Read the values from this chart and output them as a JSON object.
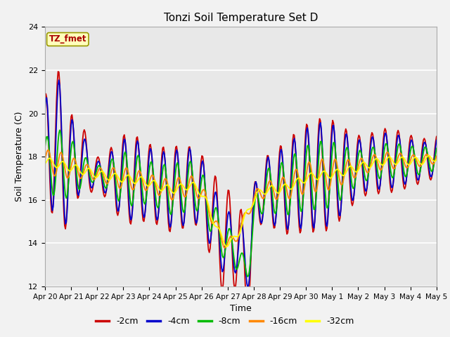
{
  "title": "Tonzi Soil Temperature Set D",
  "xlabel": "Time",
  "ylabel": "Soil Temperature (C)",
  "ylim": [
    12,
    24
  ],
  "yticks": [
    12,
    14,
    16,
    18,
    20,
    22,
    24
  ],
  "label_annotation": "TZ_fmet",
  "series_colors": {
    "-2cm": "#cc0000",
    "-4cm": "#0000cc",
    "-8cm": "#00bb00",
    "-16cm": "#ff8800",
    "-32cm": "#ffff00"
  },
  "series_labels": [
    "-2cm",
    "-4cm",
    "-8cm",
    "-16cm",
    "-32cm"
  ],
  "x_tick_labels": [
    "Apr 20",
    "Apr 21",
    "Apr 22",
    "Apr 23",
    "Apr 24",
    "Apr 25",
    "Apr 26",
    "Apr 27",
    "Apr 28",
    "Apr 29",
    "Apr 30",
    "May 1",
    "May 2",
    "May 3",
    "May 4",
    "May 5"
  ],
  "n_points": 480,
  "plot_bg_color": "#e8e8e8",
  "grid_color": "#ffffff",
  "fig_bg_color": "#f2f2f2"
}
